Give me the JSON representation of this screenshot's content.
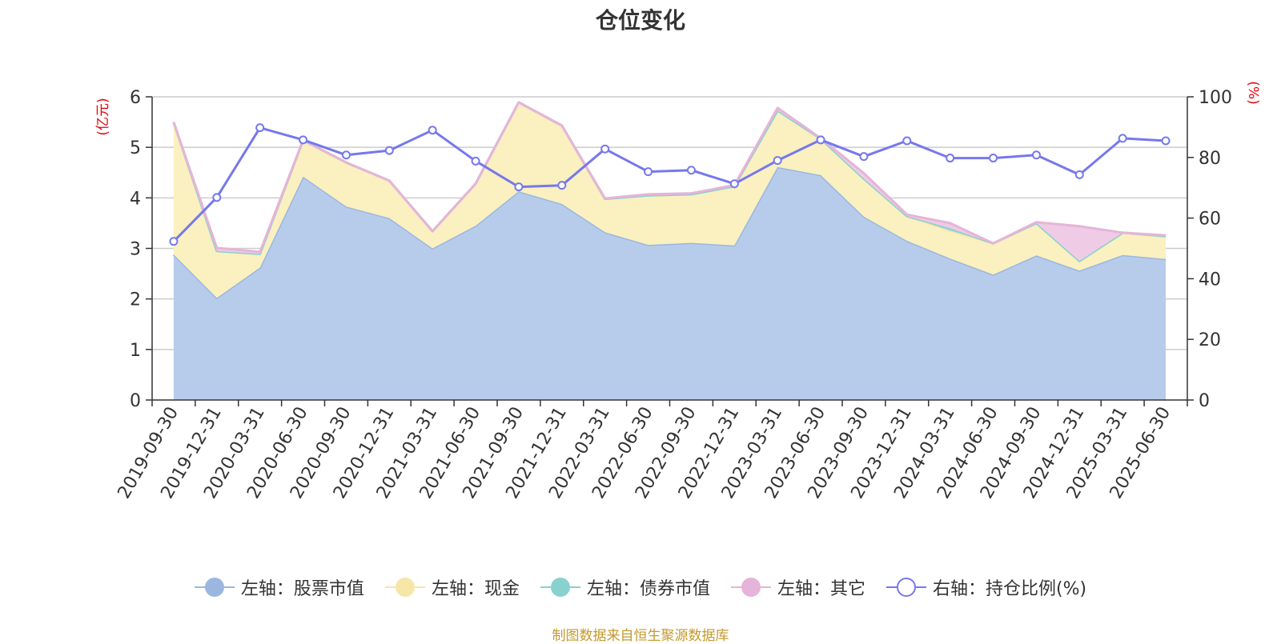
{
  "title": "仓位变化",
  "source_note": "制图数据来自恒生聚源数据库",
  "left_axis_unit": "(亿元)",
  "right_axis_unit": "(%)",
  "chart_data": {
    "type": "area",
    "title": "仓位变化",
    "categories": [
      "2019-09-30",
      "2019-12-31",
      "2020-03-31",
      "2020-06-30",
      "2020-09-30",
      "2020-12-31",
      "2021-03-31",
      "2021-06-30",
      "2021-09-30",
      "2021-12-31",
      "2022-03-31",
      "2022-06-30",
      "2022-09-30",
      "2022-12-31",
      "2023-03-31",
      "2023-06-30",
      "2023-09-30",
      "2023-12-31",
      "2024-03-31",
      "2024-06-30",
      "2024-09-30",
      "2024-12-31",
      "2025-03-31",
      "2025-06-30"
    ],
    "left_axis": {
      "unit": "(亿元)",
      "ylim": [
        0,
        6
      ],
      "ticks": [
        0,
        1,
        2,
        3,
        4,
        5,
        6
      ]
    },
    "right_axis": {
      "unit": "(%)",
      "ylim": [
        0,
        100
      ],
      "ticks": [
        0,
        20,
        40,
        60,
        80,
        100
      ]
    },
    "stacked": true,
    "grid": true,
    "legend_position": "bottom",
    "series": [
      {
        "name": "左轴：股票市值",
        "axis": "left",
        "type": "area",
        "color": "#9bb7e0",
        "fill": "#b7cceb",
        "values": [
          2.88,
          2.02,
          2.62,
          4.42,
          3.83,
          3.6,
          3.0,
          3.45,
          4.13,
          3.88,
          3.32,
          3.07,
          3.11,
          3.06,
          4.61,
          4.45,
          3.63,
          3.15,
          2.8,
          2.48,
          2.86,
          2.56,
          2.87,
          2.79
        ]
      },
      {
        "name": "左轴：现金",
        "axis": "left",
        "type": "area",
        "color": "#f7e7a6",
        "fill": "#faf0c0",
        "values": [
          2.62,
          0.93,
          0.27,
          0.72,
          0.87,
          0.74,
          0.34,
          0.83,
          1.76,
          1.55,
          0.66,
          0.98,
          0.96,
          1.17,
          1.12,
          0.72,
          0.75,
          0.49,
          0.55,
          0.62,
          0.64,
          0.19,
          0.44,
          0.45
        ]
      },
      {
        "name": "左轴：债券市值",
        "axis": "left",
        "type": "area",
        "color": "#88d1cf",
        "fill": "#9ed8d6",
        "values": [
          0,
          0,
          0,
          0,
          0,
          0,
          0,
          0,
          0,
          0,
          0,
          0,
          0,
          0,
          0,
          0,
          0,
          0,
          0.05,
          0,
          0,
          0,
          0,
          0
        ]
      },
      {
        "name": "左轴：其它",
        "axis": "left",
        "type": "area",
        "color": "#e6b4d8",
        "fill": "#efcbe5",
        "values": [
          0,
          0.06,
          0.04,
          0,
          0,
          0,
          0,
          0,
          0,
          0,
          0.01,
          0.02,
          0.02,
          0.02,
          0.05,
          0.01,
          0.11,
          0.03,
          0.1,
          0,
          0.02,
          0.69,
          0,
          0.02
        ]
      },
      {
        "name": "右轴：持仓比例(%)",
        "axis": "right",
        "type": "line",
        "color": "#7678ec",
        "values": [
          52.3,
          66.8,
          89.8,
          85.8,
          80.8,
          82.3,
          89.0,
          78.8,
          70.3,
          70.8,
          82.8,
          75.3,
          75.8,
          71.3,
          79.0,
          85.8,
          80.3,
          85.5,
          79.8,
          79.8,
          80.8,
          74.3,
          86.3,
          85.5
        ]
      }
    ]
  }
}
